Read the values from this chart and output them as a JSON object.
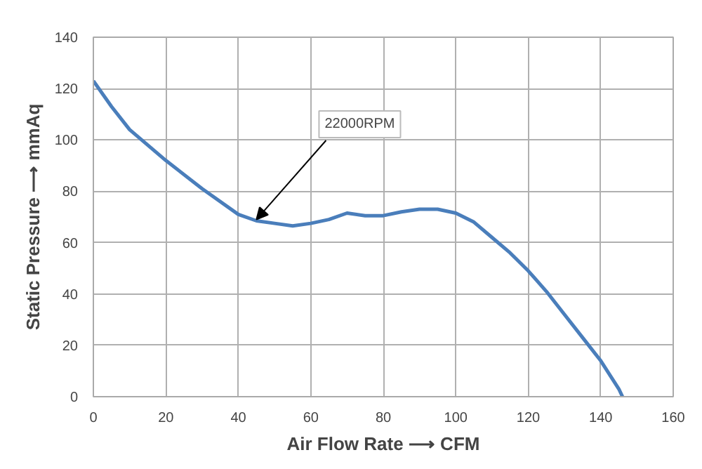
{
  "chart_data": {
    "type": "line",
    "xlabel": "Air Flow Rate ⟶ CFM",
    "ylabel": "Static Pressure ⟶ mmAq",
    "x": [
      0,
      5,
      10,
      20,
      30,
      40,
      45,
      50,
      55,
      60,
      65,
      70,
      75,
      80,
      85,
      90,
      95,
      100,
      105,
      110,
      115,
      120,
      125,
      130,
      135,
      140,
      145,
      146
    ],
    "series": [
      {
        "color": "#4a7ebb",
        "values": [
          123,
          113,
          104,
          92,
          81,
          71,
          68.5,
          67.5,
          66.5,
          67.5,
          69,
          71.5,
          70.5,
          70.5,
          72,
          73,
          73,
          71.5,
          68,
          62,
          56,
          49,
          41,
          32,
          23,
          14,
          3,
          0
        ]
      }
    ],
    "xlim": [
      0,
      160
    ],
    "ylim": [
      0,
      140
    ],
    "xticks": [
      0,
      20,
      40,
      60,
      80,
      100,
      120,
      140,
      160
    ],
    "yticks": [
      0,
      20,
      40,
      60,
      80,
      100,
      120,
      140
    ],
    "grid": true,
    "marker": "none",
    "line_style": "solid",
    "annotations": [
      {
        "text": "22000RPM",
        "x": 45,
        "y": 69
      }
    ]
  }
}
